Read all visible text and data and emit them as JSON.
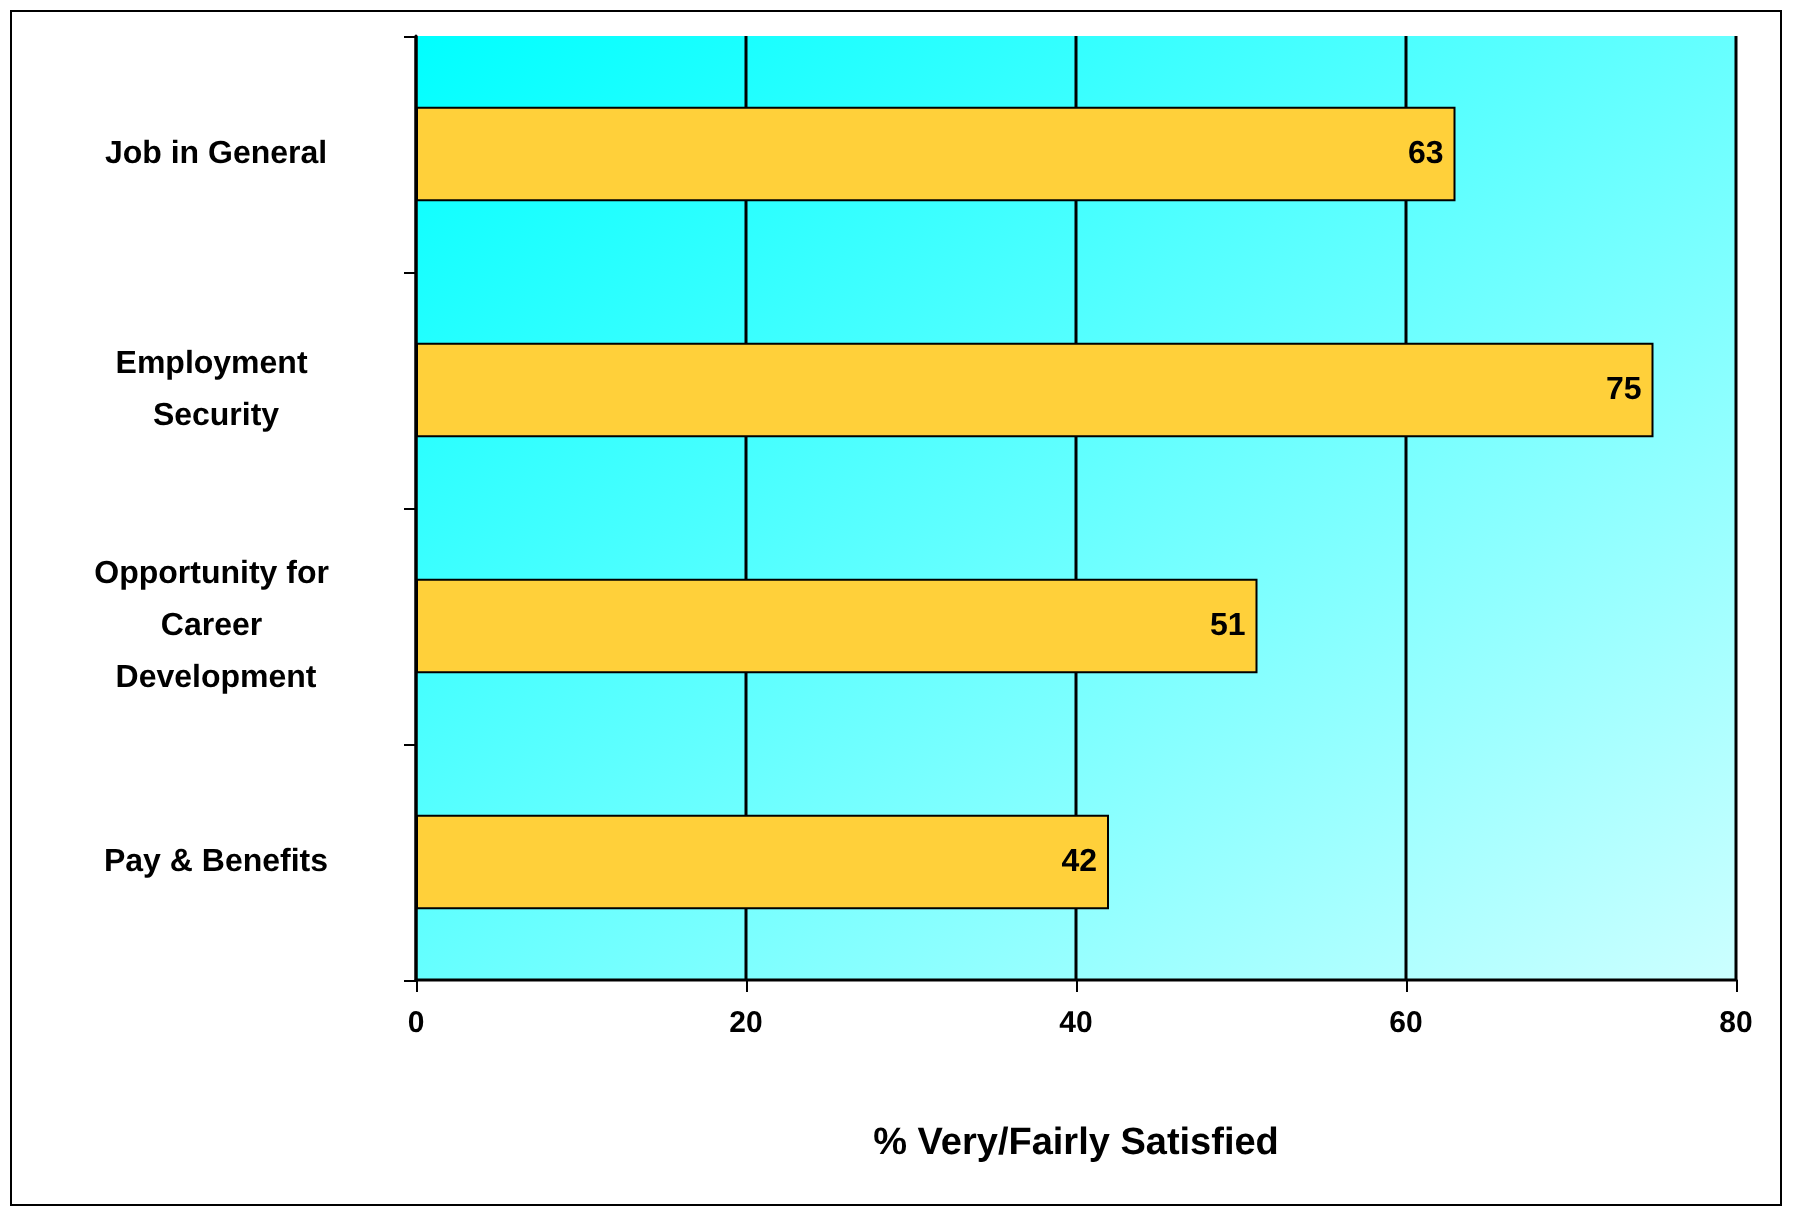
{
  "chart_data": {
    "type": "bar",
    "orientation": "horizontal",
    "categories": [
      "Job in General",
      "Employment Security",
      "Opportunity for Career Development",
      "Pay & Benefits"
    ],
    "values": [
      63,
      75,
      51,
      42
    ],
    "color": "#ffd03a",
    "xlim": [
      0,
      80
    ],
    "xticks": [
      0,
      20,
      40,
      60,
      80
    ],
    "xlabel": "% Very/Fairly Satisfied",
    "grid": "x",
    "data_labels": true
  }
}
